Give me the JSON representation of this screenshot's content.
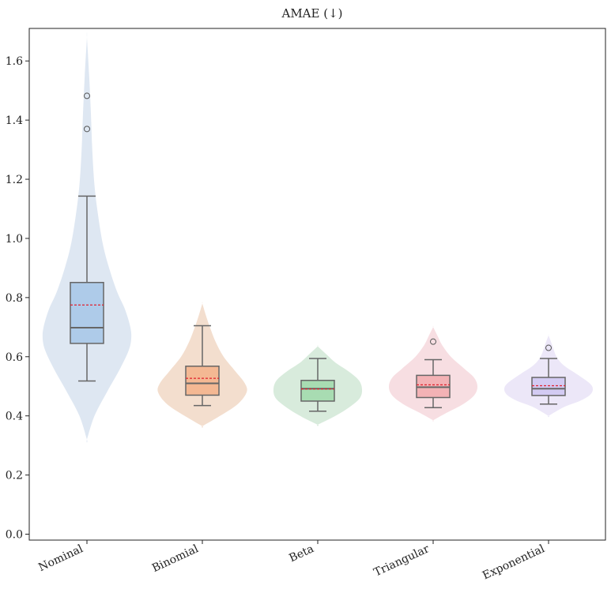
{
  "chart_data": {
    "type": "violin-box",
    "title": "AMAE (↓)",
    "xlabel": "",
    "ylabel": "",
    "ylim": [
      -0.02,
      1.71
    ],
    "yticks": [
      "0.0",
      "0.2",
      "0.4",
      "0.6",
      "0.8",
      "1.0",
      "1.2",
      "1.4",
      "1.6"
    ],
    "grid": false,
    "categories": [
      "Nominal",
      "Binomial",
      "Beta",
      "Triangular",
      "Exponential"
    ],
    "series": [
      {
        "category": "Nominal",
        "box": {
          "whisker_low": 0.518,
          "q1": 0.645,
          "median": 0.698,
          "mean": 0.775,
          "q3": 0.851,
          "whisker_high": 1.143
        },
        "outliers": [
          1.37,
          1.482
        ],
        "violin": {
          "min": 0.32,
          "max": 1.68,
          "profile": [
            [
              0.32,
              0.0
            ],
            [
              0.4,
              0.17
            ],
            [
              0.48,
              0.45
            ],
            [
              0.56,
              0.75
            ],
            [
              0.62,
              0.94
            ],
            [
              0.66,
              1.0
            ],
            [
              0.7,
              0.98
            ],
            [
              0.76,
              0.86
            ],
            [
              0.82,
              0.68
            ],
            [
              0.9,
              0.5
            ],
            [
              0.98,
              0.36
            ],
            [
              1.08,
              0.25
            ],
            [
              1.18,
              0.17
            ],
            [
              1.3,
              0.12
            ],
            [
              1.42,
              0.09
            ],
            [
              1.55,
              0.05
            ],
            [
              1.68,
              0.0
            ]
          ]
        },
        "fill": "#dce6f1",
        "box_fill": "#aecbe9"
      },
      {
        "category": "Binomial",
        "box": {
          "whisker_low": 0.435,
          "q1": 0.47,
          "median": 0.51,
          "mean": 0.527,
          "q3": 0.568,
          "whisker_high": 0.705
        },
        "outliers": [],
        "violin": {
          "min": 0.365,
          "max": 0.78,
          "profile": [
            [
              0.365,
              0.0
            ],
            [
              0.4,
              0.4
            ],
            [
              0.44,
              0.8
            ],
            [
              0.48,
              1.0
            ],
            [
              0.51,
              0.96
            ],
            [
              0.55,
              0.75
            ],
            [
              0.6,
              0.48
            ],
            [
              0.65,
              0.3
            ],
            [
              0.7,
              0.17
            ],
            [
              0.74,
              0.08
            ],
            [
              0.78,
              0.0
            ]
          ]
        },
        "fill": "#f2dccb",
        "box_fill": "#f4b893"
      },
      {
        "category": "Beta",
        "box": {
          "whisker_low": 0.416,
          "q1": 0.45,
          "median": 0.492,
          "mean": 0.491,
          "q3": 0.52,
          "whisker_high": 0.594
        },
        "outliers": [],
        "violin": {
          "min": 0.37,
          "max": 0.635,
          "profile": [
            [
              0.37,
              0.0
            ],
            [
              0.4,
              0.4
            ],
            [
              0.43,
              0.72
            ],
            [
              0.46,
              0.95
            ],
            [
              0.49,
              1.0
            ],
            [
              0.52,
              0.93
            ],
            [
              0.55,
              0.7
            ],
            [
              0.58,
              0.4
            ],
            [
              0.61,
              0.18
            ],
            [
              0.635,
              0.0
            ]
          ]
        },
        "fill": "#d6eada",
        "box_fill": "#a8dcb2"
      },
      {
        "category": "Triangular",
        "box": {
          "whisker_low": 0.428,
          "q1": 0.462,
          "median": 0.497,
          "mean": 0.505,
          "q3": 0.537,
          "whisker_high": 0.59
        },
        "outliers": [
          0.651
        ],
        "violin": {
          "min": 0.385,
          "max": 0.7,
          "profile": [
            [
              0.385,
              0.0
            ],
            [
              0.41,
              0.3
            ],
            [
              0.44,
              0.68
            ],
            [
              0.47,
              0.93
            ],
            [
              0.5,
              1.0
            ],
            [
              0.53,
              0.92
            ],
            [
              0.56,
              0.7
            ],
            [
              0.6,
              0.4
            ],
            [
              0.64,
              0.2
            ],
            [
              0.67,
              0.1
            ],
            [
              0.7,
              0.0
            ]
          ]
        },
        "fill": "#f7dce0",
        "box_fill": "#f3b2b5"
      },
      {
        "category": "Exponential",
        "box": {
          "whisker_low": 0.44,
          "q1": 0.469,
          "median": 0.492,
          "mean": 0.502,
          "q3": 0.53,
          "whisker_high": 0.594
        },
        "outliers": [
          0.63
        ],
        "violin": {
          "min": 0.4,
          "max": 0.672,
          "profile": [
            [
              0.4,
              0.0
            ],
            [
              0.43,
              0.35
            ],
            [
              0.45,
              0.7
            ],
            [
              0.47,
              0.93
            ],
            [
              0.49,
              1.0
            ],
            [
              0.51,
              0.93
            ],
            [
              0.54,
              0.65
            ],
            [
              0.57,
              0.35
            ],
            [
              0.6,
              0.18
            ],
            [
              0.64,
              0.08
            ],
            [
              0.672,
              0.0
            ]
          ]
        },
        "fill": "#ebe6f8",
        "box_fill": "#d3cbf3"
      }
    ],
    "colors": {
      "mean_line": "#e0202c",
      "box_stroke": "#666666",
      "outlier_stroke": "#555555",
      "axis": "#222222"
    }
  }
}
